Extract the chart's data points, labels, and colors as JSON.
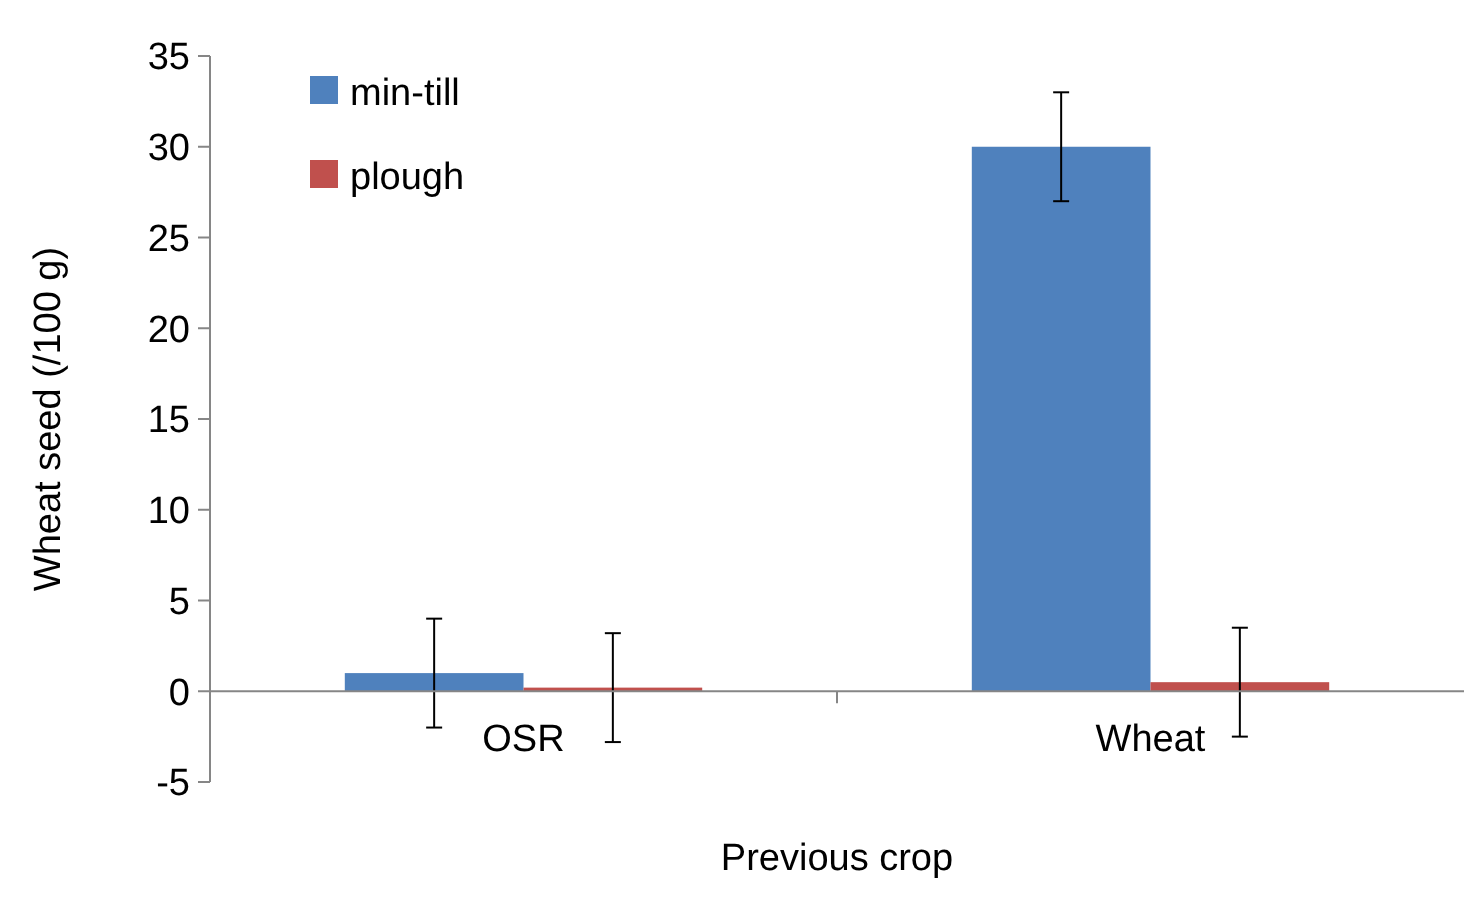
{
  "chart_data": {
    "type": "bar",
    "xlabel": "Previous crop",
    "ylabel": "Wheat seed (/100 g)",
    "categories": [
      "OSR",
      "Wheat"
    ],
    "series": [
      {
        "name": "min-till",
        "color": "#4f81bd",
        "values": [
          1,
          30
        ],
        "errors": [
          3,
          3
        ]
      },
      {
        "name": "plough",
        "color": "#c0504d",
        "values": [
          0.2,
          0.5
        ],
        "errors": [
          3,
          3
        ]
      }
    ],
    "ylim": [
      -5,
      35
    ],
    "yticks": [
      -5,
      0,
      5,
      10,
      15,
      20,
      25,
      30,
      35
    ],
    "grid": false,
    "legend": "top left"
  }
}
